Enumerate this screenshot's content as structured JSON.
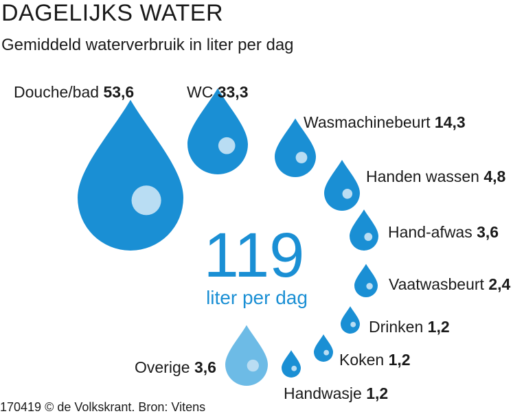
{
  "title": "DAGELIJKS WATER",
  "subtitle": "Gemiddeld waterverbruik in liter per dag",
  "footer": "170419 © de Volkskrant. Bron: Vitens",
  "total": {
    "value": "119",
    "unit": "liter per dag"
  },
  "colors": {
    "drop": "#1a8fd4",
    "drop_other": "#6dbbe6",
    "highlight": "#b9ddf3",
    "accent_text": "#1a8fd4"
  },
  "chart_data": {
    "type": "bubble",
    "title": "DAGELIJKS WATER",
    "subtitle": "Gemiddeld waterverbruik in liter per dag",
    "unit": "liter per dag",
    "total": 119,
    "items": [
      {
        "name": "Douche/bad",
        "value": 53.6,
        "value_label": "53,6"
      },
      {
        "name": "WC",
        "value": 33.3,
        "value_label": "33,3"
      },
      {
        "name": "Wasmachinebeurt",
        "value": 14.3,
        "value_label": "14,3"
      },
      {
        "name": "Handen wassen",
        "value": 4.8,
        "value_label": "4,8"
      },
      {
        "name": "Hand-afwas",
        "value": 3.6,
        "value_label": "3,6"
      },
      {
        "name": "Vaatwasbeurt",
        "value": 2.4,
        "value_label": "2,4"
      },
      {
        "name": "Drinken",
        "value": 1.2,
        "value_label": "1,2"
      },
      {
        "name": "Koken",
        "value": 1.2,
        "value_label": "1,2"
      },
      {
        "name": "Handwasje",
        "value": 1.2,
        "value_label": "1,2"
      },
      {
        "name": "Overige",
        "value": 3.6,
        "value_label": "3,6"
      }
    ]
  }
}
